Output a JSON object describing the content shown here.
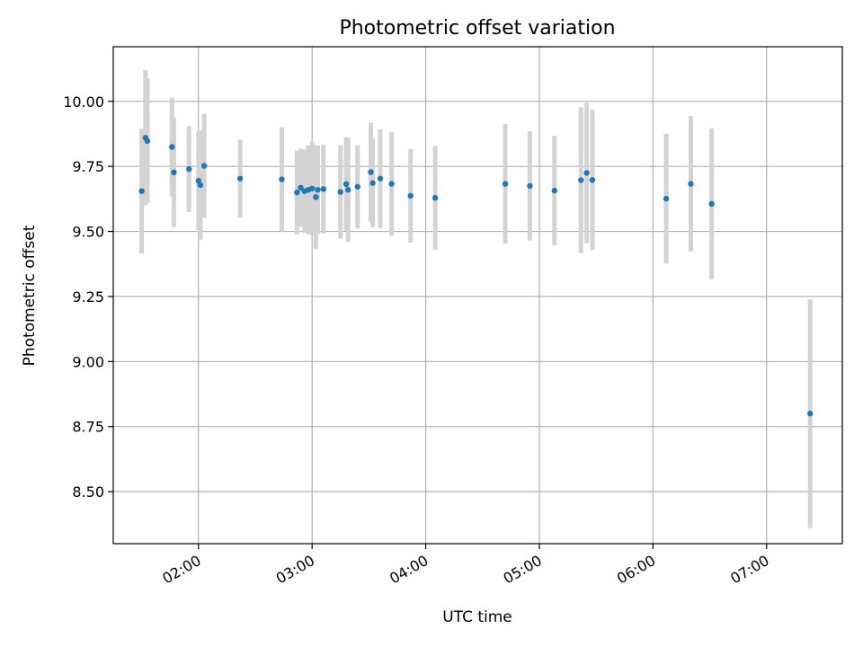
{
  "chart_data": {
    "type": "scatter",
    "title": "Photometric offset variation",
    "xlabel": "UTC time",
    "ylabel": "Photometric offset",
    "xlim": [
      "01:15",
      "07:40"
    ],
    "ylim": [
      8.3,
      10.21
    ],
    "grid": true,
    "x_ticks": [
      "02:00",
      "03:00",
      "04:00",
      "05:00",
      "06:00",
      "07:00"
    ],
    "y_ticks": [
      8.5,
      8.75,
      9.0,
      9.25,
      9.5,
      9.75,
      10.0
    ],
    "y_tick_labels": [
      "8.50",
      "8.75",
      "9.00",
      "9.25",
      "9.50",
      "9.75",
      "10.00"
    ],
    "colors": {
      "points": "#1f77b4",
      "error_bars": "#d3d3d3",
      "grid": "#b0b0b0"
    },
    "points": [
      {
        "x": "01:30",
        "y": 9.655,
        "err": 0.24
      },
      {
        "x": "01:32",
        "y": 9.86,
        "err": 0.26
      },
      {
        "x": "01:33",
        "y": 9.848,
        "err": 0.24
      },
      {
        "x": "01:46",
        "y": 9.825,
        "err": 0.19
      },
      {
        "x": "01:47",
        "y": 9.727,
        "err": 0.21
      },
      {
        "x": "01:55",
        "y": 9.74,
        "err": 0.165
      },
      {
        "x": "02:00",
        "y": 9.695,
        "err": 0.19
      },
      {
        "x": "02:01",
        "y": 9.678,
        "err": 0.21
      },
      {
        "x": "02:03",
        "y": 9.752,
        "err": 0.2
      },
      {
        "x": "02:22",
        "y": 9.703,
        "err": 0.15
      },
      {
        "x": "02:44",
        "y": 9.7,
        "err": 0.2
      },
      {
        "x": "02:52",
        "y": 9.65,
        "err": 0.16
      },
      {
        "x": "02:54",
        "y": 9.668,
        "err": 0.15
      },
      {
        "x": "02:56",
        "y": 9.655,
        "err": 0.16
      },
      {
        "x": "02:58",
        "y": 9.66,
        "err": 0.17
      },
      {
        "x": "03:00",
        "y": 9.665,
        "err": 0.18
      },
      {
        "x": "03:02",
        "y": 9.632,
        "err": 0.2
      },
      {
        "x": "03:03",
        "y": 9.66,
        "err": 0.17
      },
      {
        "x": "03:06",
        "y": 9.663,
        "err": 0.17
      },
      {
        "x": "03:15",
        "y": 9.652,
        "err": 0.18
      },
      {
        "x": "03:18",
        "y": 9.682,
        "err": 0.18
      },
      {
        "x": "03:19",
        "y": 9.66,
        "err": 0.2
      },
      {
        "x": "03:24",
        "y": 9.672,
        "err": 0.16
      },
      {
        "x": "03:31",
        "y": 9.728,
        "err": 0.19
      },
      {
        "x": "03:32",
        "y": 9.686,
        "err": 0.17
      },
      {
        "x": "03:36",
        "y": 9.703,
        "err": 0.19
      },
      {
        "x": "03:42",
        "y": 9.683,
        "err": 0.2
      },
      {
        "x": "03:52",
        "y": 9.637,
        "err": 0.18
      },
      {
        "x": "04:05",
        "y": 9.629,
        "err": 0.2
      },
      {
        "x": "04:42",
        "y": 9.683,
        "err": 0.23
      },
      {
        "x": "04:55",
        "y": 9.675,
        "err": 0.21
      },
      {
        "x": "05:08",
        "y": 9.657,
        "err": 0.21
      },
      {
        "x": "05:22",
        "y": 9.697,
        "err": 0.28
      },
      {
        "x": "05:25",
        "y": 9.725,
        "err": 0.27
      },
      {
        "x": "05:28",
        "y": 9.698,
        "err": 0.27
      },
      {
        "x": "06:07",
        "y": 9.626,
        "err": 0.25
      },
      {
        "x": "06:20",
        "y": 9.683,
        "err": 0.26
      },
      {
        "x": "06:31",
        "y": 9.606,
        "err": 0.29
      },
      {
        "x": "07:23",
        "y": 8.8,
        "err": 0.44
      }
    ]
  }
}
